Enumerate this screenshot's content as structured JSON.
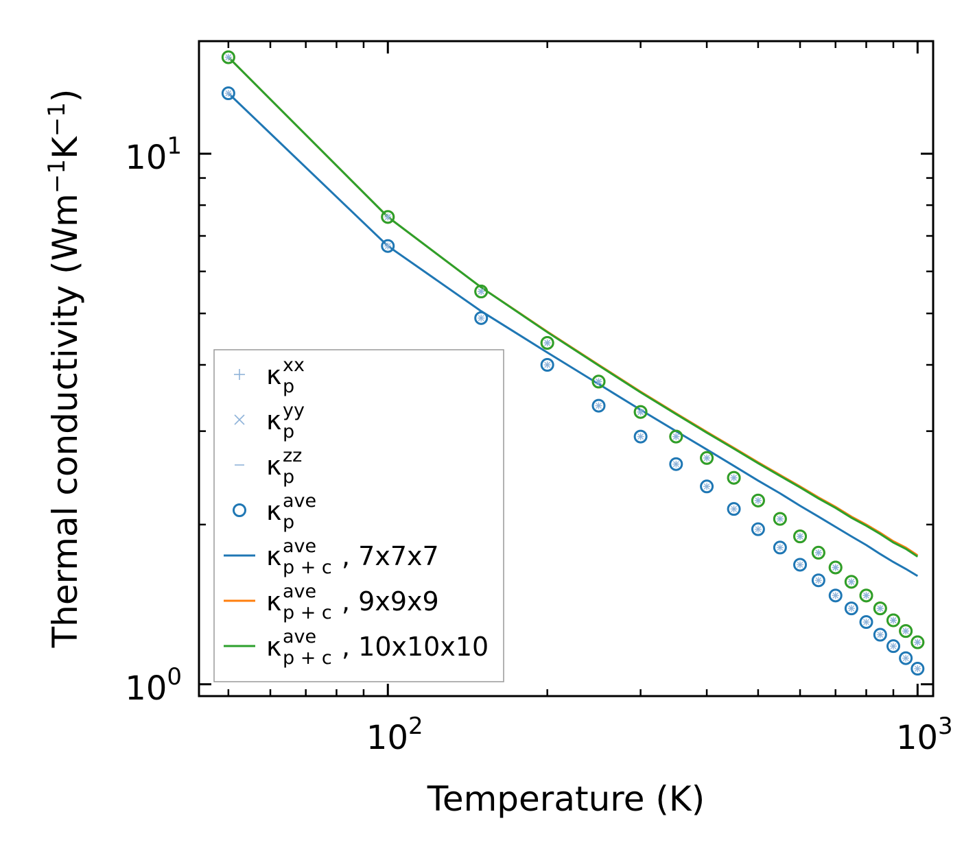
{
  "chart_data": {
    "type": "scatter",
    "title": "",
    "xlabel": "Temperature (K)",
    "ylabel": {
      "prefix": "Thermal conductivity (Wm",
      "sup1": "−1",
      "mid": "K",
      "sup2": "−1",
      "suffix": ")"
    },
    "xscale": "log",
    "yscale": "log",
    "xlim": [
      44,
      1070
    ],
    "ylim": [
      0.95,
      16.3
    ],
    "x_ticks": [
      {
        "value": 100,
        "base": "10",
        "exp": "2"
      },
      {
        "value": 1000,
        "base": "10",
        "exp": "3"
      }
    ],
    "y_ticks": [
      {
        "value": 1,
        "base": "10",
        "exp": "0"
      },
      {
        "value": 10,
        "base": "10",
        "exp": "1"
      }
    ],
    "colors": {
      "c7": "#1f77b4",
      "c9": "#ff7f0e",
      "c10": "#2ca02c",
      "pale_blue": "#8fb3d9",
      "axis": "#000000",
      "legend_border": "#999999"
    },
    "temperatures": [
      50,
      100,
      150,
      200,
      250,
      300,
      350,
      400,
      450,
      500,
      550,
      600,
      650,
      700,
      750,
      800,
      850,
      900,
      950,
      1000
    ],
    "series": [
      {
        "name": "7x7x7",
        "color": "#1f77b4",
        "kappa_p": [
          13.0,
          6.7,
          4.9,
          4.0,
          3.35,
          2.93,
          2.6,
          2.36,
          2.14,
          1.96,
          1.81,
          1.68,
          1.57,
          1.47,
          1.39,
          1.31,
          1.24,
          1.18,
          1.12,
          1.07
        ],
        "kappa_pc": [
          13.0,
          6.7,
          5.05,
          4.22,
          3.68,
          3.29,
          3.0,
          2.77,
          2.58,
          2.42,
          2.29,
          2.17,
          2.07,
          1.98,
          1.9,
          1.83,
          1.76,
          1.7,
          1.65,
          1.6
        ]
      },
      {
        "name": "9x9x9",
        "color": "#ff7f0e",
        "kappa_p": [
          15.2,
          7.6,
          5.5,
          4.4,
          3.72,
          3.26,
          2.93,
          2.67,
          2.45,
          2.22,
          2.05,
          1.9,
          1.77,
          1.66,
          1.56,
          1.47,
          1.39,
          1.32,
          1.26,
          1.2
        ],
        "kappa_pc": [
          15.2,
          7.6,
          5.6,
          4.62,
          4.0,
          3.56,
          3.24,
          2.99,
          2.79,
          2.62,
          2.48,
          2.36,
          2.25,
          2.16,
          2.07,
          2.0,
          1.93,
          1.86,
          1.81,
          1.75
        ]
      },
      {
        "name": "10x10x10",
        "color": "#2ca02c",
        "kappa_p": [
          15.2,
          7.6,
          5.5,
          4.4,
          3.72,
          3.26,
          2.93,
          2.67,
          2.45,
          2.22,
          2.05,
          1.9,
          1.77,
          1.66,
          1.56,
          1.47,
          1.39,
          1.32,
          1.26,
          1.2
        ],
        "kappa_pc": [
          15.2,
          7.6,
          5.6,
          4.61,
          3.99,
          3.55,
          3.23,
          2.98,
          2.78,
          2.61,
          2.47,
          2.35,
          2.24,
          2.15,
          2.06,
          1.99,
          1.92,
          1.85,
          1.8,
          1.74
        ]
      }
    ],
    "legend": {
      "location": "lower-left",
      "entries": [
        {
          "marker": "plus",
          "color": "#8fb3d9",
          "sym": "κ",
          "sub": "p",
          "sup": "xx",
          "text": ""
        },
        {
          "marker": "x",
          "color": "#8fb3d9",
          "sym": "κ",
          "sub": "p",
          "sup": "yy",
          "text": ""
        },
        {
          "marker": "dash",
          "color": "#8fb3d9",
          "sym": "κ",
          "sub": "p",
          "sup": "zz",
          "text": ""
        },
        {
          "marker": "circle",
          "color": "#1f77b4",
          "sym": "κ",
          "sub": "p",
          "sup": "ave",
          "text": ""
        },
        {
          "marker": "line",
          "color": "#1f77b4",
          "sym": "κ",
          "sub": "p + c",
          "sup": "ave",
          "text": ", 7x7x7"
        },
        {
          "marker": "line",
          "color": "#ff7f0e",
          "sym": "κ",
          "sub": "p + c",
          "sup": "ave",
          "text": ", 9x9x9"
        },
        {
          "marker": "line",
          "color": "#2ca02c",
          "sym": "κ",
          "sub": "p + c",
          "sup": "ave",
          "text": ", 10x10x10"
        }
      ]
    }
  }
}
